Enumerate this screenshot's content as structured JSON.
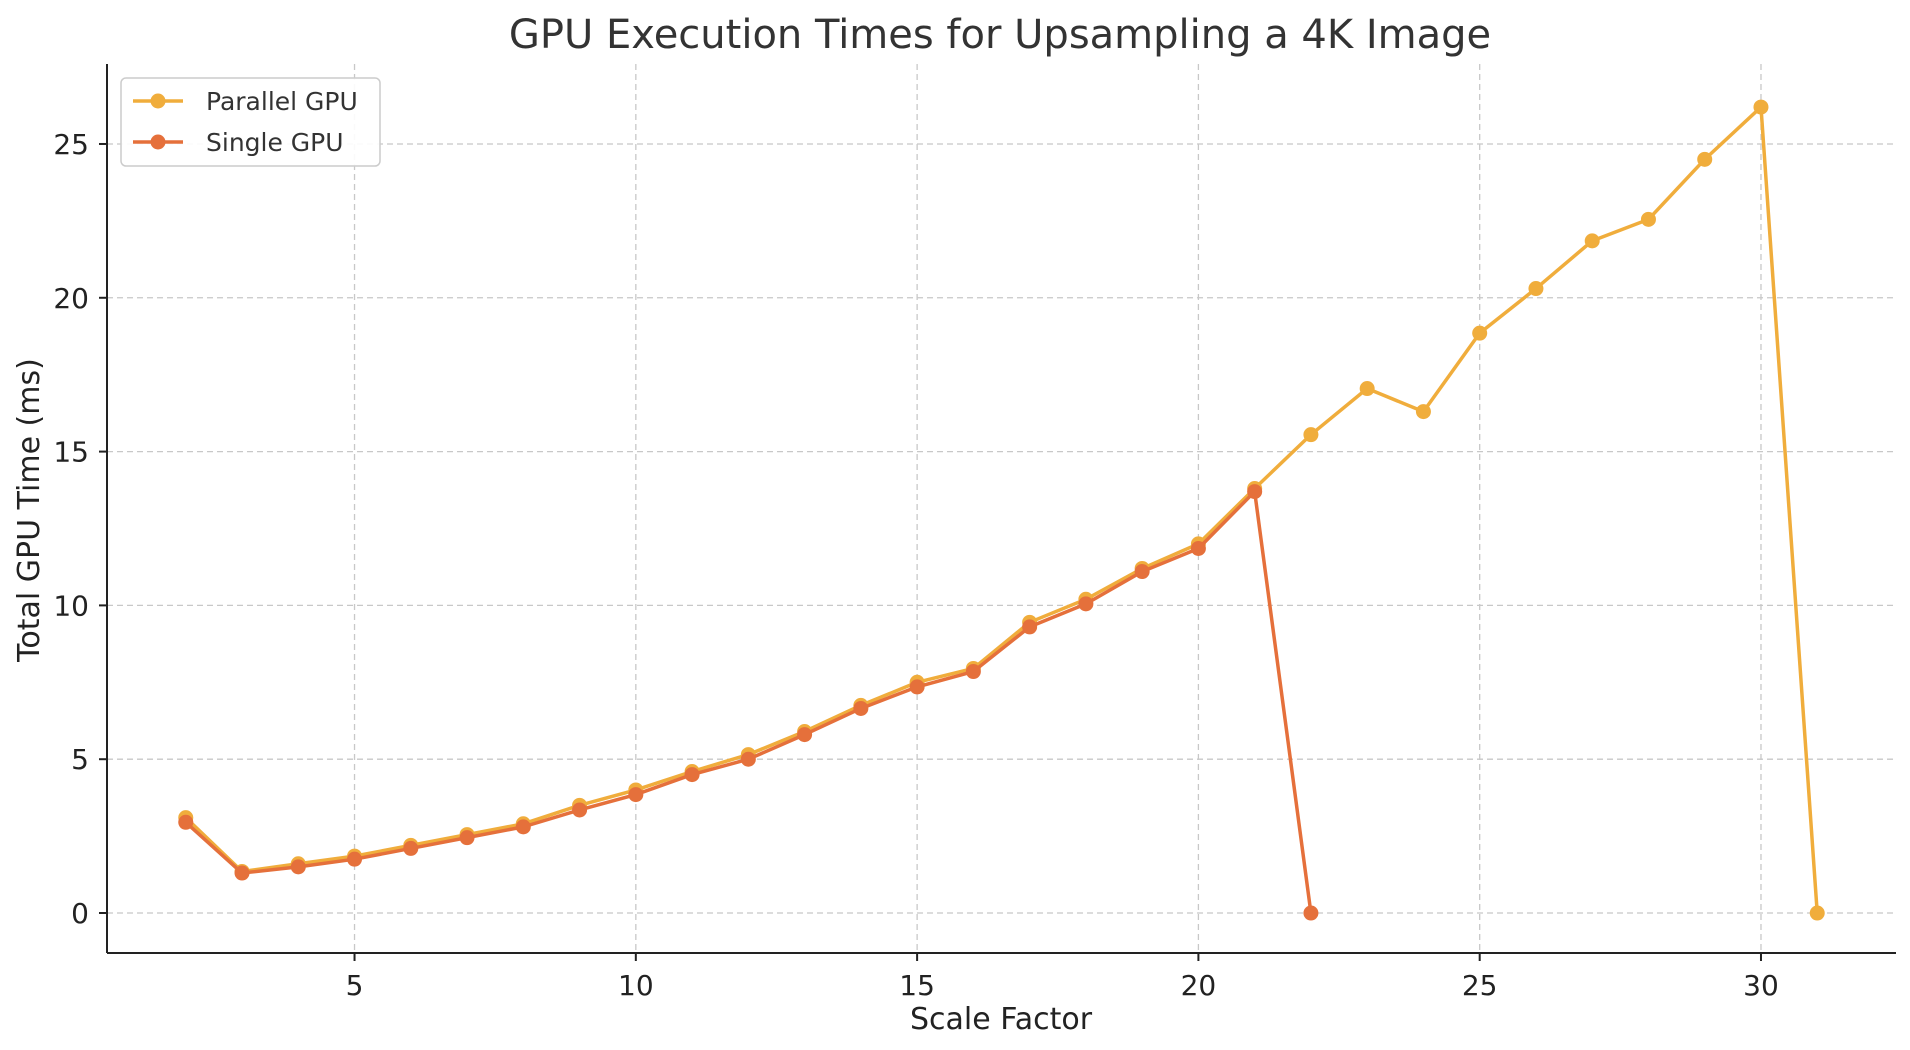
{
  "chart_data": {
    "type": "line",
    "title": "GPU Execution Times for Upsampling a 4K Image",
    "xlabel": "Scale Factor",
    "ylabel": "Total GPU Time (ms)",
    "xlim": [
      0.6,
      32.4
    ],
    "ylim": [
      -1.3,
      27.6
    ],
    "xticks": [
      5,
      10,
      15,
      20,
      25,
      30
    ],
    "yticks": [
      0,
      5,
      10,
      15,
      20,
      25
    ],
    "grid": true,
    "legend_position": "top-left",
    "series": [
      {
        "name": "Parallel GPU",
        "color": "#f0ad3c",
        "x": [
          2,
          3,
          4,
          5,
          6,
          7,
          8,
          9,
          10,
          11,
          12,
          13,
          14,
          15,
          16,
          17,
          18,
          19,
          20,
          21,
          22,
          23,
          24,
          25,
          26,
          27,
          28,
          29,
          30,
          31
        ],
        "y": [
          3.1,
          1.35,
          1.6,
          1.85,
          2.2,
          2.55,
          2.9,
          3.5,
          4.0,
          4.6,
          5.15,
          5.9,
          6.75,
          7.5,
          7.95,
          9.45,
          10.2,
          11.2,
          12.0,
          13.8,
          15.55,
          17.05,
          16.3,
          18.85,
          20.3,
          21.85,
          22.55,
          24.5,
          26.2,
          0.0
        ]
      },
      {
        "name": "Single GPU",
        "color": "#e5703b",
        "x": [
          2,
          3,
          4,
          5,
          6,
          7,
          8,
          9,
          10,
          11,
          12,
          13,
          14,
          15,
          16,
          17,
          18,
          19,
          20,
          21,
          22
        ],
        "y": [
          2.95,
          1.3,
          1.5,
          1.75,
          2.1,
          2.45,
          2.8,
          3.35,
          3.85,
          4.5,
          5.0,
          5.8,
          6.65,
          7.35,
          7.85,
          9.3,
          10.05,
          11.1,
          11.85,
          13.7,
          0.0
        ]
      }
    ]
  }
}
